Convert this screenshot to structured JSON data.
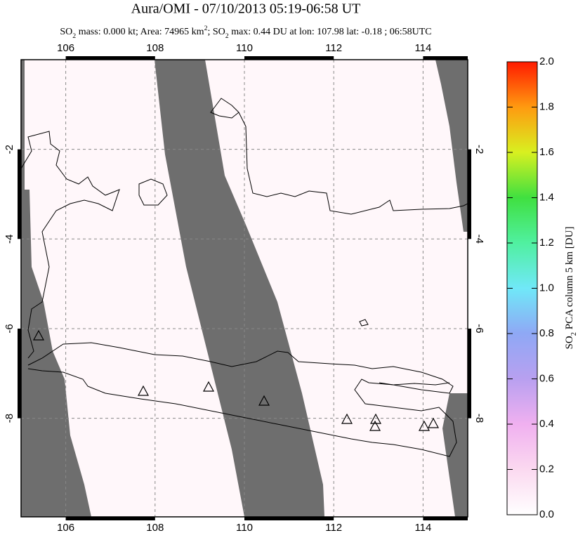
{
  "header": {
    "title": "Aura/OMI - 07/10/2013 05:19-06:58 UT",
    "subtitle_parts": [
      "SO",
      "2",
      " mass: 0.000 kt; Area: 74965 km",
      "2",
      "; SO",
      "2",
      " max: 0.44 DU at lon: 107.98 lat: -0.18 ; 06:58UTC"
    ],
    "subtitle_styles": [
      "normal",
      "sub",
      "normal",
      "sup",
      "normal",
      "sub",
      "normal"
    ]
  },
  "map": {
    "xlim": [
      105,
      115
    ],
    "ylim": [
      0,
      -10.2
    ],
    "xticks": [
      106,
      108,
      110,
      112,
      114
    ],
    "yticks": [
      -2,
      -4,
      -6,
      -8
    ],
    "grid": true
  },
  "colorbar": {
    "label_parts": [
      "SO",
      "2",
      " PCA column 5 km [DU]"
    ],
    "label_styles": [
      "normal",
      "sub",
      "normal"
    ],
    "lim": [
      0,
      2
    ],
    "ticks": [
      {
        "value": 0,
        "label": "0.0"
      },
      {
        "value": 0.2,
        "label": "0.2"
      },
      {
        "value": 0.4,
        "label": "0.4"
      },
      {
        "value": 0.6,
        "label": "0.6"
      },
      {
        "value": 0.8,
        "label": "0.8"
      },
      {
        "value": 1,
        "label": "1.0"
      },
      {
        "value": 1.2,
        "label": "1.2"
      },
      {
        "value": 1.4,
        "label": "1.4"
      },
      {
        "value": 1.6,
        "label": "1.6"
      },
      {
        "value": 1.8,
        "label": "1.8"
      },
      {
        "value": 2,
        "label": "2.0"
      }
    ]
  }
}
